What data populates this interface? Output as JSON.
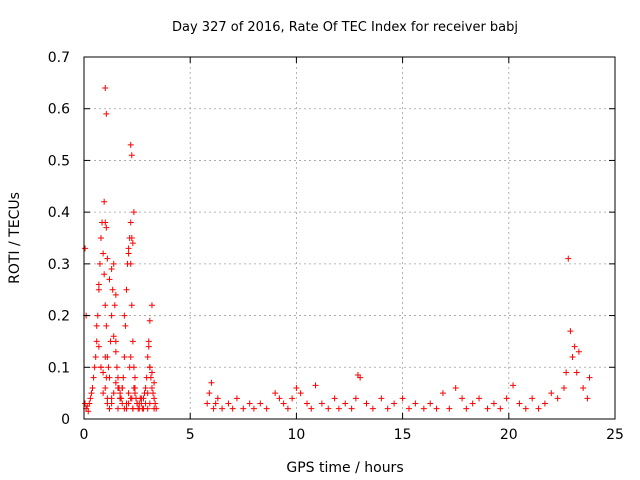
{
  "chart_data": {
    "type": "scatter",
    "title": "Day 327 of 2016, Rate Of TEC Index for receiver babj",
    "xlabel": "GPS time / hours",
    "ylabel": "ROTI / TECUs",
    "xlim": [
      0,
      25
    ],
    "ylim": [
      0,
      0.7
    ],
    "xticks": [
      0,
      5,
      10,
      15,
      20,
      25
    ],
    "yticks": [
      0,
      0.1,
      0.2,
      0.3,
      0.4,
      0.5,
      0.6,
      0.7
    ],
    "xtick_labels": [
      "0",
      "5",
      "10",
      "15",
      "20",
      "25"
    ],
    "ytick_labels": [
      "0",
      "0.1",
      "0.2",
      "0.3",
      "0.4",
      "0.5",
      "0.6",
      "0.7"
    ],
    "grid": true,
    "marker": "+",
    "color": "#ff0000",
    "series": [
      {
        "name": "ROTI",
        "x": [
          0.05,
          0.1,
          0.15,
          0.2,
          0.25,
          0.3,
          0.35,
          0.4,
          0.45,
          0.5,
          0.55,
          0.6,
          0.65,
          0.7,
          0.75,
          0.8,
          0.85,
          0.9,
          0.95,
          1.0,
          1.05,
          1.1,
          1.15,
          1.2,
          1.25,
          1.3,
          1.35,
          1.4,
          1.45,
          1.5,
          1.55,
          1.6,
          1.65,
          1.7,
          1.75,
          1.8,
          1.85,
          1.9,
          1.95,
          2.0,
          2.05,
          2.1,
          2.15,
          2.2,
          2.25,
          2.3,
          2.35,
          2.4,
          2.45,
          2.5,
          2.55,
          2.6,
          2.65,
          2.7,
          2.75,
          2.8,
          2.85,
          2.9,
          2.95,
          3.0,
          3.05,
          3.1,
          3.15,
          3.2,
          3.25,
          3.3,
          3.35,
          3.4,
          0.05,
          0.1,
          0.6,
          0.7,
          0.8,
          0.9,
          1.0,
          1.05,
          1.1,
          1.2,
          1.3,
          1.4,
          1.5,
          1.6,
          1.7,
          1.8,
          1.9,
          2.0,
          2.1,
          2.15,
          2.2,
          2.25,
          2.3,
          2.35,
          2.4,
          2.5,
          2.6,
          2.7,
          2.8,
          2.9,
          3.0,
          3.1,
          3.2,
          3.3,
          0.7,
          0.8,
          0.9,
          1.0,
          1.1,
          1.2,
          1.3,
          1.4,
          1.5,
          1.6,
          1.7,
          1.8,
          2.0,
          2.1,
          2.2,
          2.3,
          2.4,
          3.0,
          3.1,
          3.2,
          3.3,
          0.95,
          1.0,
          1.05,
          1.1,
          1.2,
          1.3,
          1.5,
          1.9,
          2.1,
          2.2,
          2.25,
          2.3,
          2.35,
          3.05,
          3.1,
          1.0,
          1.05,
          2.2,
          2.25,
          5.8,
          5.9,
          6.0,
          6.1,
          6.2,
          6.3,
          6.5,
          6.8,
          7.0,
          7.2,
          7.5,
          7.8,
          8.0,
          8.3,
          8.6,
          9.0,
          9.2,
          9.4,
          9.6,
          9.8,
          10.0,
          10.2,
          10.5,
          10.7,
          10.9,
          11.2,
          11.5,
          11.8,
          12.0,
          12.3,
          12.6,
          12.8,
          12.9,
          13.0,
          13.3,
          13.6,
          14.0,
          14.3,
          14.6,
          15.0,
          15.3,
          15.6,
          16.0,
          16.3,
          16.6,
          16.9,
          17.2,
          17.5,
          17.8,
          18.0,
          18.3,
          18.6,
          19.0,
          19.3,
          19.6,
          19.9,
          20.2,
          20.5,
          20.8,
          21.1,
          21.4,
          21.7,
          22.0,
          22.3,
          22.6,
          22.7,
          22.8,
          22.9,
          23.0,
          23.1,
          23.2,
          23.3,
          23.5,
          23.7,
          23.8
        ],
        "y": [
          0.03,
          0.02,
          0.025,
          0.015,
          0.03,
          0.04,
          0.05,
          0.06,
          0.08,
          0.1,
          0.12,
          0.15,
          0.2,
          0.25,
          0.3,
          0.35,
          0.38,
          0.32,
          0.28,
          0.22,
          0.18,
          0.12,
          0.1,
          0.08,
          0.15,
          0.2,
          0.25,
          0.3,
          0.22,
          0.15,
          0.1,
          0.08,
          0.06,
          0.05,
          0.04,
          0.06,
          0.08,
          0.12,
          0.18,
          0.25,
          0.3,
          0.32,
          0.35,
          0.3,
          0.22,
          0.15,
          0.1,
          0.06,
          0.04,
          0.03,
          0.02,
          0.03,
          0.04,
          0.03,
          0.02,
          0.04,
          0.05,
          0.06,
          0.08,
          0.12,
          0.15,
          0.1,
          0.08,
          0.06,
          0.05,
          0.04,
          0.03,
          0.02,
          0.33,
          0.2,
          0.18,
          0.26,
          0.1,
          0.05,
          0.12,
          0.08,
          0.04,
          0.02,
          0.03,
          0.05,
          0.07,
          0.02,
          0.04,
          0.06,
          0.02,
          0.03,
          0.05,
          0.1,
          0.12,
          0.04,
          0.02,
          0.06,
          0.08,
          0.03,
          0.02,
          0.04,
          0.02,
          0.03,
          0.05,
          0.19,
          0.22,
          0.07,
          0.14,
          0.1,
          0.09,
          0.06,
          0.03,
          0.02,
          0.04,
          0.16,
          0.13,
          0.06,
          0.04,
          0.03,
          0.02,
          0.03,
          0.04,
          0.02,
          0.05,
          0.02,
          0.03,
          0.09,
          0.02,
          0.42,
          0.38,
          0.37,
          0.31,
          0.27,
          0.29,
          0.24,
          0.2,
          0.33,
          0.38,
          0.35,
          0.34,
          0.4,
          0.14,
          0.1,
          0.64,
          0.59,
          0.53,
          0.51,
          0.03,
          0.05,
          0.07,
          0.02,
          0.03,
          0.04,
          0.02,
          0.03,
          0.02,
          0.04,
          0.02,
          0.03,
          0.02,
          0.03,
          0.02,
          0.05,
          0.04,
          0.03,
          0.02,
          0.04,
          0.06,
          0.05,
          0.03,
          0.02,
          0.065,
          0.03,
          0.02,
          0.04,
          0.02,
          0.03,
          0.02,
          0.04,
          0.085,
          0.08,
          0.03,
          0.02,
          0.04,
          0.02,
          0.03,
          0.04,
          0.02,
          0.03,
          0.02,
          0.03,
          0.02,
          0.05,
          0.02,
          0.06,
          0.04,
          0.02,
          0.03,
          0.04,
          0.02,
          0.03,
          0.02,
          0.04,
          0.065,
          0.03,
          0.02,
          0.04,
          0.02,
          0.03,
          0.05,
          0.04,
          0.06,
          0.09,
          0.31,
          0.17,
          0.12,
          0.14,
          0.09,
          0.13,
          0.06,
          0.04,
          0.08
        ]
      }
    ]
  }
}
